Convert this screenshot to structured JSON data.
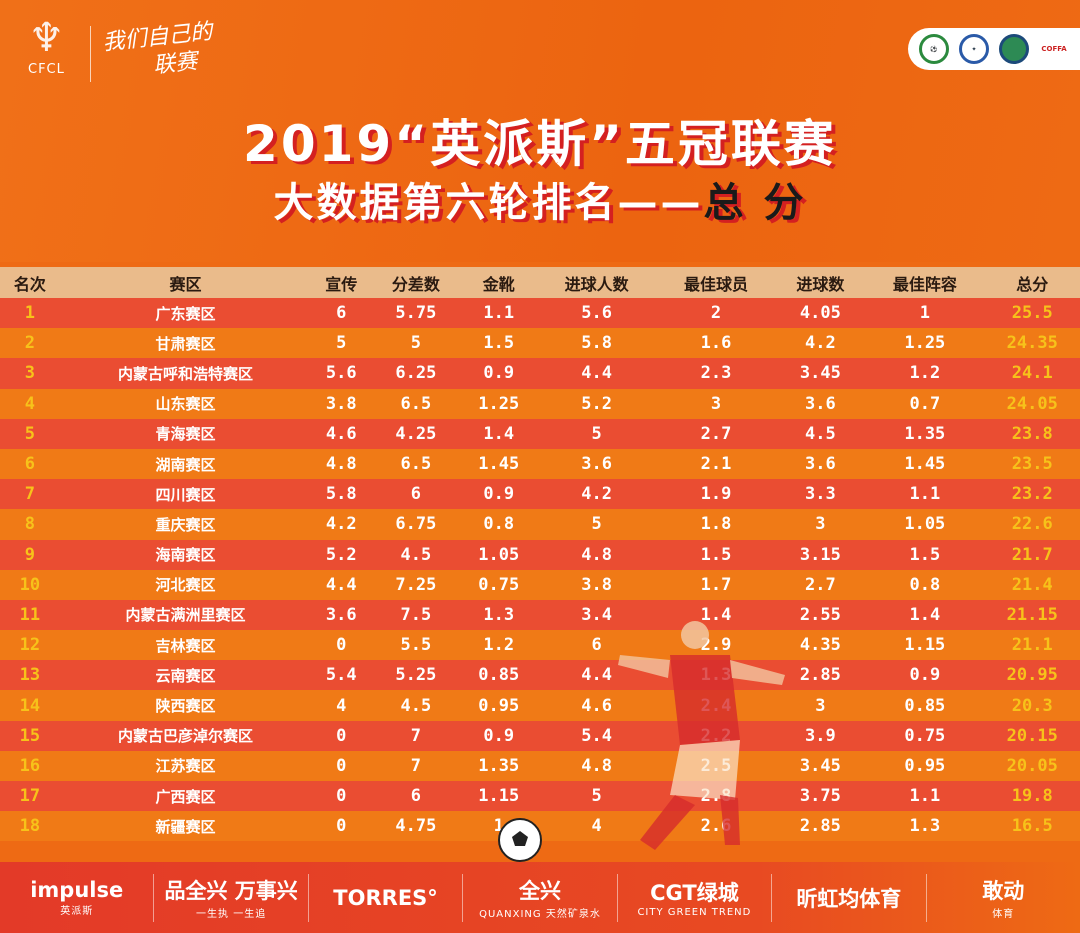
{
  "header": {
    "logo_text": "CFCL",
    "slogan_line1": "我们自己的",
    "slogan_line2": "联赛",
    "partner_logos": [
      "green-badge",
      "football-for-all",
      "blue-badge",
      "COFFA"
    ],
    "partner_coffa": "COFFA",
    "title_line1": "2019“英派斯”五冠联赛",
    "title_line2_main": "大数据第六轮排名——",
    "title_line2_accent": "总 分"
  },
  "colors": {
    "row_red": "#ea4d32",
    "row_orange": "#f07a16",
    "header_beige": "#eabb8b",
    "highlight_yellow": "#f7c21a"
  },
  "table": {
    "columns": [
      "名次",
      "赛区",
      "宣传",
      "分差数",
      "金靴",
      "进球人数",
      "最佳球员",
      "进球数",
      "最佳阵容",
      "总分"
    ],
    "rows": [
      [
        "1",
        "广东赛区",
        "6",
        "5.75",
        "1.1",
        "5.6",
        "2",
        "4.05",
        "1",
        "25.5"
      ],
      [
        "2",
        "甘肃赛区",
        "5",
        "5",
        "1.5",
        "5.8",
        "1.6",
        "4.2",
        "1.25",
        "24.35"
      ],
      [
        "3",
        "内蒙古呼和浩特赛区",
        "5.6",
        "6.25",
        "0.9",
        "4.4",
        "2.3",
        "3.45",
        "1.2",
        "24.1"
      ],
      [
        "4",
        "山东赛区",
        "3.8",
        "6.5",
        "1.25",
        "5.2",
        "3",
        "3.6",
        "0.7",
        "24.05"
      ],
      [
        "5",
        "青海赛区",
        "4.6",
        "4.25",
        "1.4",
        "5",
        "2.7",
        "4.5",
        "1.35",
        "23.8"
      ],
      [
        "6",
        "湖南赛区",
        "4.8",
        "6.5",
        "1.45",
        "3.6",
        "2.1",
        "3.6",
        "1.45",
        "23.5"
      ],
      [
        "7",
        "四川赛区",
        "5.8",
        "6",
        "0.9",
        "4.2",
        "1.9",
        "3.3",
        "1.1",
        "23.2"
      ],
      [
        "8",
        "重庆赛区",
        "4.2",
        "6.75",
        "0.8",
        "5",
        "1.8",
        "3",
        "1.05",
        "22.6"
      ],
      [
        "9",
        "海南赛区",
        "5.2",
        "4.5",
        "1.05",
        "4.8",
        "1.5",
        "3.15",
        "1.5",
        "21.7"
      ],
      [
        "10",
        "河北赛区",
        "4.4",
        "7.25",
        "0.75",
        "3.8",
        "1.7",
        "2.7",
        "0.8",
        "21.4"
      ],
      [
        "11",
        "内蒙古满洲里赛区",
        "3.6",
        "7.5",
        "1.3",
        "3.4",
        "1.4",
        "2.55",
        "1.4",
        "21.15"
      ],
      [
        "12",
        "吉林赛区",
        "0",
        "5.5",
        "1.2",
        "6",
        "2.9",
        "4.35",
        "1.15",
        "21.1"
      ],
      [
        "13",
        "云南赛区",
        "5.4",
        "5.25",
        "0.85",
        "4.4",
        "1.3",
        "2.85",
        "0.9",
        "20.95"
      ],
      [
        "14",
        "陕西赛区",
        "4",
        "4.5",
        "0.95",
        "4.6",
        "2.4",
        "3",
        "0.85",
        "20.3"
      ],
      [
        "15",
        "内蒙古巴彦淖尔赛区",
        "0",
        "7",
        "0.9",
        "5.4",
        "2.2",
        "3.9",
        "0.75",
        "20.15"
      ],
      [
        "16",
        "江苏赛区",
        "0",
        "7",
        "1.35",
        "4.8",
        "2.5",
        "3.45",
        "0.95",
        "20.05"
      ],
      [
        "17",
        "广西赛区",
        "0",
        "6",
        "1.15",
        "5",
        "2.8",
        "3.75",
        "1.1",
        "19.8"
      ],
      [
        "18",
        "新疆赛区",
        "0",
        "4.75",
        "1",
        "4",
        "2.6",
        "2.85",
        "1.3",
        "16.5"
      ]
    ]
  },
  "sponsors": [
    {
      "name": "impulse",
      "sub": "英派斯"
    },
    {
      "name": "品全兴 万事兴",
      "sub": "一生执 一生追"
    },
    {
      "name": "TORRES°",
      "sub": ""
    },
    {
      "name": "全兴",
      "sub": "QUANXING 天然矿泉水"
    },
    {
      "name": "CGT绿城",
      "sub": "CITY GREEN TREND"
    },
    {
      "name": "昕虹均体育",
      "sub": ""
    },
    {
      "name": "敢动",
      "sub": "体育"
    }
  ]
}
